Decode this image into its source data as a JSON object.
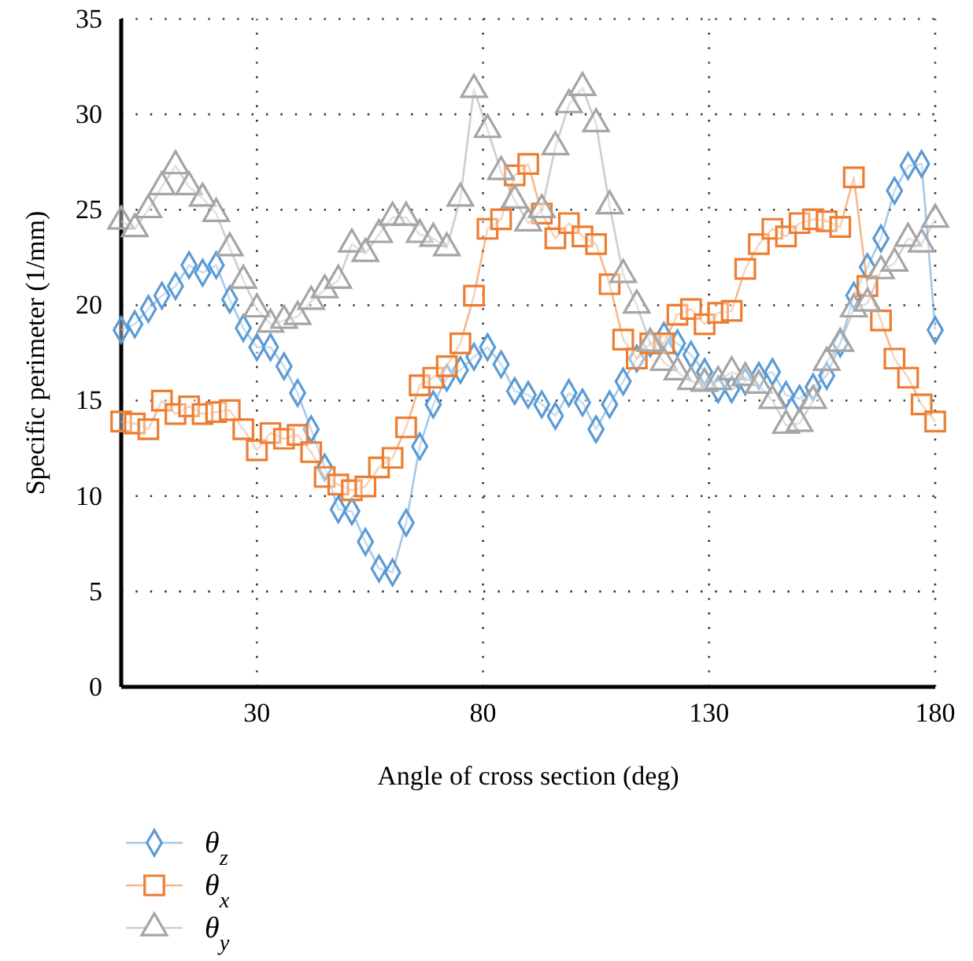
{
  "chart_data": {
    "type": "line",
    "xlabel": "Angle of cross section (deg)",
    "ylabel": "Specific perimeter (1/mm)",
    "x": [
      0,
      3,
      6,
      9,
      12,
      15,
      18,
      21,
      24,
      27,
      30,
      33,
      36,
      39,
      42,
      45,
      48,
      51,
      54,
      57,
      60,
      63,
      66,
      69,
      72,
      75,
      78,
      81,
      84,
      87,
      90,
      93,
      96,
      99,
      102,
      105,
      108,
      111,
      114,
      117,
      120,
      123,
      126,
      129,
      132,
      135,
      138,
      141,
      144,
      147,
      150,
      153,
      156,
      159,
      162,
      165,
      168,
      171,
      174,
      177,
      180
    ],
    "xlim": [
      0,
      180
    ],
    "xticks": [
      30,
      80,
      130,
      180
    ],
    "ylim": [
      0,
      35
    ],
    "yticks": [
      0,
      5,
      10,
      15,
      20,
      25,
      30,
      35
    ],
    "grid": true,
    "legend": "bottom left",
    "series": [
      {
        "name": "θ$_{z}$",
        "color": "#5b9bd5",
        "marker": "diamond",
        "values": [
          18.7,
          19.0,
          19.8,
          20.5,
          21.0,
          22.1,
          21.7,
          22.1,
          20.3,
          18.8,
          17.8,
          17.8,
          16.8,
          15.4,
          13.5,
          11.5,
          9.3,
          9.2,
          7.6,
          6.2,
          6.0,
          8.6,
          12.6,
          14.8,
          16.2,
          16.6,
          17.3,
          17.8,
          16.9,
          15.5,
          15.3,
          14.8,
          14.2,
          15.4,
          14.9,
          13.5,
          14.8,
          16.0,
          17.2,
          18.0,
          18.4,
          18.0,
          17.4,
          16.5,
          15.6,
          15.6,
          16.0,
          16.3,
          16.5,
          15.3,
          15.1,
          15.7,
          16.3,
          18.0,
          20.5,
          22.0,
          23.5,
          26.0,
          27.3,
          27.4,
          18.7
        ]
      },
      {
        "name": "θ$_{x}$",
        "color": "#ed7d31",
        "marker": "square",
        "values": [
          13.9,
          13.8,
          13.5,
          15.0,
          14.3,
          14.7,
          14.3,
          14.4,
          14.5,
          13.5,
          12.4,
          13.3,
          13.0,
          13.2,
          12.3,
          11.0,
          10.6,
          10.3,
          10.5,
          11.5,
          12.0,
          13.6,
          15.8,
          16.2,
          16.8,
          18.0,
          20.5,
          24.0,
          24.5,
          26.8,
          27.4,
          24.8,
          23.5,
          24.3,
          23.6,
          23.2,
          21.1,
          18.2,
          17.2,
          18.0,
          18.0,
          19.5,
          19.8,
          19.0,
          19.6,
          19.7,
          21.9,
          23.2,
          24.0,
          23.6,
          24.3,
          24.5,
          24.4,
          24.1,
          26.7,
          21.0,
          19.2,
          17.2,
          16.2,
          14.8,
          13.9
        ]
      },
      {
        "name": "θ$_{y}$",
        "color": "#a5a5a5",
        "marker": "triangle",
        "values": [
          24.4,
          24.0,
          25.0,
          26.2,
          27.3,
          26.2,
          25.6,
          24.8,
          23.0,
          21.3,
          19.8,
          19.0,
          19.2,
          19.4,
          20.2,
          20.8,
          21.3,
          23.2,
          22.7,
          23.7,
          24.6,
          24.6,
          23.7,
          23.5,
          23.0,
          25.6,
          31.3,
          29.2,
          27.0,
          25.5,
          24.3,
          25.0,
          28.3,
          30.5,
          31.4,
          29.5,
          25.2,
          21.6,
          20.0,
          18.0,
          17.0,
          16.5,
          16.0,
          15.9,
          16.0,
          16.5,
          16.2,
          15.8,
          15.0,
          13.7,
          13.8,
          15.0,
          17.0,
          18.0,
          19.8,
          20.1,
          21.8,
          22.2,
          23.5,
          23.2,
          24.5
        ]
      }
    ]
  }
}
